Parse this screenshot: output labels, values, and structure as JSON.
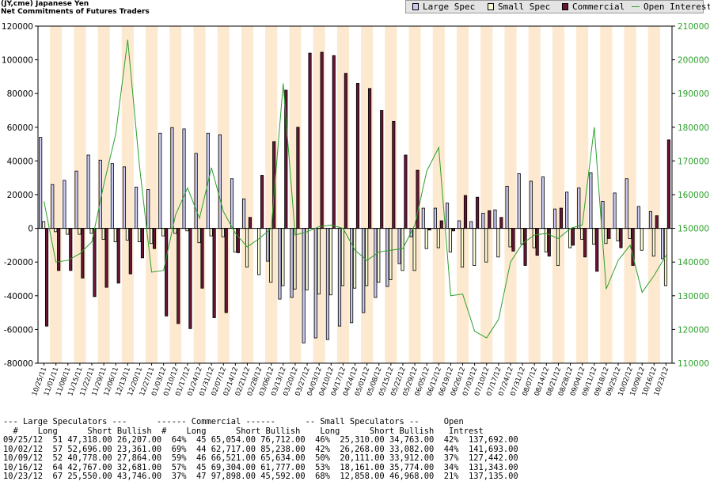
{
  "header": {
    "title_line1": "(JY,cme) Japanese Yen",
    "title_line2": "Net Commitments of Futures Traders"
  },
  "legend": {
    "items": [
      {
        "label": "Large Spec",
        "color": "#c8c8f0"
      },
      {
        "label": "Small Spec",
        "color": "#fafad2"
      },
      {
        "label": "Commercial",
        "color": "#6b1536"
      },
      {
        "label": "Open Interest",
        "color": "#2ca02c"
      }
    ]
  },
  "chart_data": {
    "type": "bar",
    "title": "(JY,cme) Japanese Yen Net Commitments of Futures Traders",
    "y_left": {
      "min": -80000,
      "max": 120000,
      "ticks": [
        "120000",
        "100000",
        "80000",
        "60000",
        "40000",
        "20000",
        "0",
        "-20000",
        "-40000",
        "-60000",
        "-80000"
      ]
    },
    "y_right": {
      "min": 110000,
      "max": 210000,
      "ticks": [
        "210000",
        "200000",
        "190000",
        "180000",
        "170000",
        "160000",
        "150000",
        "140000",
        "130000",
        "120000",
        "110000"
      ]
    },
    "x_tick_labels": [
      "10/25/11",
      "11/01/11",
      "11/08/11",
      "11/15/11",
      "11/22/11",
      "11/29/11",
      "12/06/11",
      "12/13/11",
      "12/20/11",
      "12/27/11",
      "01/03/12",
      "01/10/12",
      "01/17/12",
      "01/24/12",
      "01/31/12",
      "02/07/12",
      "02/14/12",
      "02/21/12",
      "02/28/12",
      "03/06/12",
      "03/13/12",
      "03/20/12",
      "03/27/12",
      "04/03/12",
      "04/10/12",
      "04/17/12",
      "04/24/12",
      "05/01/12",
      "05/08/12",
      "05/15/12",
      "05/22/12",
      "05/29/12",
      "06/05/12",
      "06/12/12",
      "06/19/12",
      "06/26/12",
      "07/03/12",
      "07/10/12",
      "07/17/12",
      "07/24/12",
      "07/31/12",
      "08/07/12",
      "08/14/12",
      "08/21/12",
      "08/28/12",
      "09/04/12",
      "09/11/12",
      "09/18/12",
      "09/25/12",
      "10/02/12",
      "10/09/12",
      "10/16/12",
      "10/23/12"
    ],
    "series": [
      {
        "name": "Large Spec",
        "color": "#c8c8f0",
        "values": [
          54000,
          26000,
          28500,
          34000,
          43500,
          40500,
          38500,
          36500,
          24500,
          23000,
          56500,
          59800,
          59000,
          44500,
          56500,
          55500,
          29500,
          17500,
          0,
          -19500,
          -42000,
          -41000,
          -68000,
          -65000,
          -66000,
          -58000,
          -56000,
          -50000,
          -41000,
          -34500,
          -21000,
          -5000,
          12000,
          12000,
          15000,
          4500,
          4000,
          9000,
          11000,
          25000,
          32500,
          28000,
          30500,
          11500,
          21500,
          24000,
          33000,
          16000,
          21000,
          29500,
          13000,
          10000,
          -18000
        ]
      },
      {
        "name": "Small Spec",
        "color": "#fafad2",
        "values": [
          4000,
          -2000,
          -3500,
          -3500,
          -3000,
          -6500,
          -8000,
          -7000,
          -8000,
          -9000,
          -4500,
          -3000,
          -1500,
          -8500,
          -4500,
          -5000,
          -14000,
          -23000,
          -27500,
          -32000,
          -34000,
          -36000,
          -36500,
          -39000,
          -39500,
          -34000,
          -35500,
          -34000,
          -32000,
          -30500,
          -25000,
          -25000,
          -12000,
          -11500,
          -14000,
          -23000,
          -22000,
          -20000,
          -17000,
          -11000,
          -9500,
          -11500,
          -14000,
          -22000,
          -11500,
          -6500,
          -9500,
          -9000,
          -7500,
          -6000,
          -13000,
          -16500,
          -34000
        ]
      },
      {
        "name": "Commercial",
        "color": "#6b1536",
        "values": [
          -58000,
          -25000,
          -25000,
          -29500,
          -40500,
          -35000,
          -32500,
          -27000,
          -17500,
          -12000,
          -52000,
          -56500,
          -59500,
          -35500,
          -53000,
          -50000,
          -14500,
          6500,
          31500,
          51500,
          82000,
          60000,
          104000,
          104500,
          102500,
          92000,
          86000,
          83000,
          70000,
          63500,
          43500,
          34500,
          -1000,
          4500,
          -1500,
          19500,
          18500,
          10500,
          6500,
          -13500,
          -22000,
          -16000,
          -16500,
          12000,
          -10000,
          -17000,
          -25500,
          -6000,
          -11500,
          -22000,
          0,
          7500,
          52500
        ]
      },
      {
        "name": "Open Interest",
        "color": "#2ca02c",
        "values": [
          158000,
          140000,
          140500,
          142500,
          146000,
          163000,
          178000,
          206000,
          168000,
          137000,
          137500,
          154000,
          162000,
          153000,
          168000,
          155000,
          148500,
          144500,
          147000,
          150000,
          193000,
          148000,
          149000,
          150500,
          151000,
          150000,
          143500,
          140500,
          143000,
          143500,
          144000,
          151000,
          167000,
          174000,
          130000,
          130500,
          119500,
          117500,
          123000,
          140000,
          145500,
          148000,
          148500,
          147000,
          150000,
          151000,
          180000,
          132000,
          140500,
          145000,
          131000,
          136000,
          142000
        ]
      }
    ],
    "grid": false,
    "legend_position": "top-right"
  },
  "table": {
    "group_header": "--- Large Speculators ---      ------ Commercial ------      -- Small Speculators --     Open",
    "col_header": "  #    Long      Short Bullish  #    Long      Short Bullish    Long      Short Bullish   Intrest",
    "rows": [
      "09/25/12  51 47,318.00 26,207.00  64%  45 65,054.00 76,712.00  46%  25,310.00 34,763.00  42%  137,692.00",
      "10/02/12  57 52,696.00 23,361.00  69%  44 62,717.00 85,238.00  42%  26,268.00 33,082.00  44%  141,693.00",
      "10/09/12  52 40,778.00 27,864.00  59%  46 66,521.00 65,634.00  50%  20,111.00 33,912.00  37%  127,442.00",
      "10/16/12  64 42,767.00 32,681.00  57%  45 69,304.00 61,777.00  53%  18,161.00 35,774.00  34%  131,343.00",
      "10/23/12  67 25,550.00 43,746.00  37%  47 97,898.00 45,592.00  68%  12,858.00 46,968.00  21%  137,135.00"
    ]
  }
}
